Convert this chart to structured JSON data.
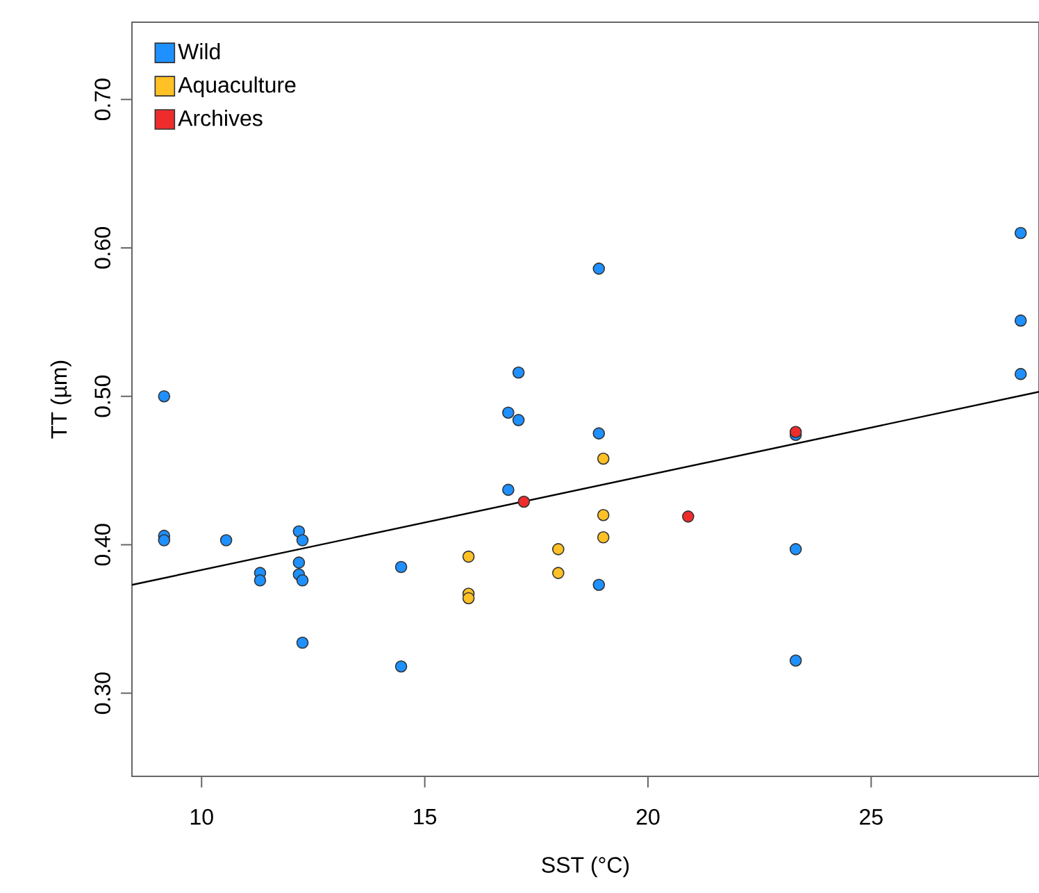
{
  "chart_data": {
    "type": "scatter",
    "xlabel": "SST (°C)",
    "ylabel": "TT (µm)",
    "xlim": [
      8.44,
      28.76
    ],
    "ylim": [
      0.244,
      0.752
    ],
    "xticks": [
      10,
      15,
      20,
      25
    ],
    "yticks": [
      {
        "value": 0.3,
        "label": "0.30"
      },
      {
        "value": 0.4,
        "label": "0.40"
      },
      {
        "value": 0.5,
        "label": "0.50"
      },
      {
        "value": 0.6,
        "label": "0.60"
      },
      {
        "value": 0.7,
        "label": "0.70"
      }
    ],
    "legend": "top left",
    "grid": false,
    "series": [
      {
        "name": "Wild",
        "color": "#1e90ff",
        "marker": "circle",
        "x": [
          9.16,
          9.16,
          9.16,
          10.55,
          11.31,
          11.31,
          12.18,
          12.26,
          12.18,
          12.18,
          12.26,
          12.26,
          14.47,
          14.47,
          16.87,
          17.1,
          17.1,
          16.87,
          18.9,
          18.9,
          18.9,
          23.31,
          23.31,
          23.31,
          28.35,
          28.35,
          28.35
        ],
        "values": [
          0.5,
          0.406,
          0.403,
          0.403,
          0.381,
          0.376,
          0.409,
          0.403,
          0.388,
          0.38,
          0.376,
          0.334,
          0.385,
          0.318,
          0.489,
          0.516,
          0.484,
          0.437,
          0.586,
          0.475,
          0.373,
          0.474,
          0.397,
          0.322,
          0.61,
          0.551,
          0.515
        ]
      },
      {
        "name": "Aquaculture",
        "color": "#ffc125",
        "marker": "circle",
        "x": [
          15.98,
          15.98,
          15.98,
          17.99,
          17.99,
          19.0,
          19.0,
          19.0
        ],
        "values": [
          0.392,
          0.367,
          0.364,
          0.397,
          0.381,
          0.458,
          0.42,
          0.405
        ]
      },
      {
        "name": "Archives",
        "color": "#ee2c2c",
        "marker": "circle",
        "x": [
          17.22,
          20.9,
          23.31
        ],
        "values": [
          0.429,
          0.419,
          0.476
        ]
      },
      {
        "type": "line",
        "color": "#000000",
        "marker": "none",
        "line_style": "solid",
        "x": [
          8.44,
          28.76
        ],
        "values": [
          0.373,
          0.503
        ]
      }
    ]
  }
}
